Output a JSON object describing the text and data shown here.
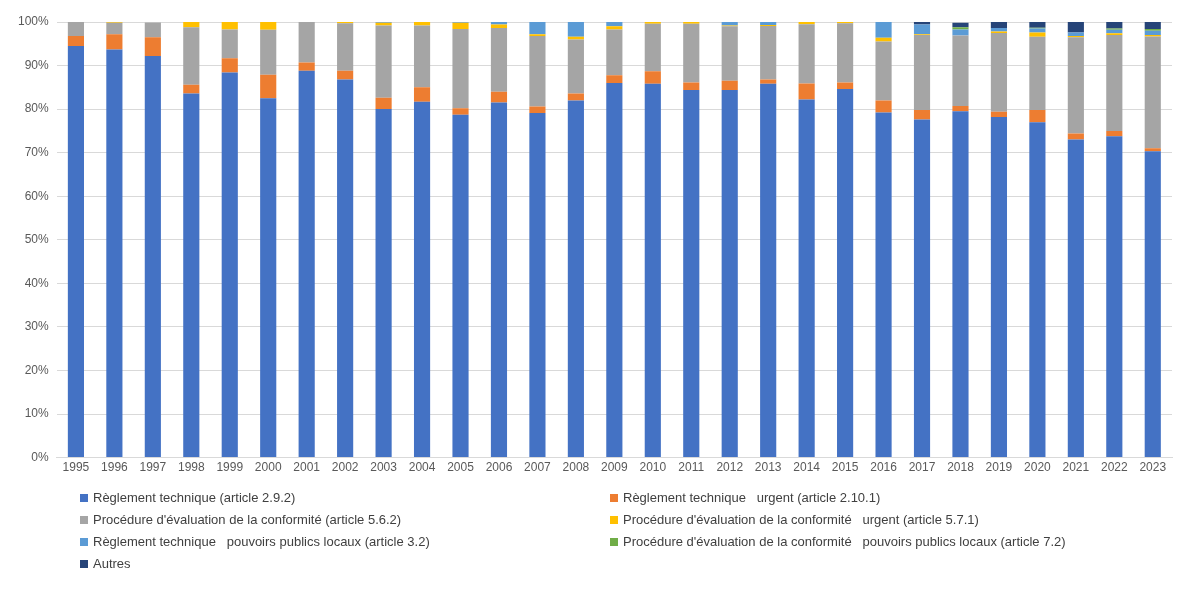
{
  "chart_data": {
    "type": "bar",
    "stacked": true,
    "legend": "bottom",
    "grid": "y",
    "categories": [
      "1995",
      "1996",
      "1997",
      "1998",
      "1999",
      "2000",
      "2001",
      "2002",
      "2003",
      "2004",
      "2005",
      "2006",
      "2007",
      "2008",
      "2009",
      "2010",
      "2011",
      "2012",
      "2013",
      "2014",
      "2015",
      "2016",
      "2017",
      "2018",
      "2019",
      "2020",
      "2021",
      "2022",
      "2023"
    ],
    "ylim": [
      0,
      100
    ],
    "yticks": [
      {
        "value": 0,
        "label": "0%"
      },
      {
        "value": 10,
        "label": "10%"
      },
      {
        "value": 20,
        "label": "20%"
      },
      {
        "value": 30,
        "label": "30%"
      },
      {
        "value": 40,
        "label": "40%"
      },
      {
        "value": 50,
        "label": "50%"
      },
      {
        "value": 60,
        "label": "60%"
      },
      {
        "value": 70,
        "label": "70%"
      },
      {
        "value": 80,
        "label": "80%"
      },
      {
        "value": 90,
        "label": "90%"
      },
      {
        "value": 100,
        "label": "100%"
      }
    ],
    "series": [
      {
        "name": "Règlement technique (article 2.9.2)",
        "color": "#4472c4",
        "values": [
          94.5,
          93.7,
          92.2,
          83.6,
          88.4,
          82.5,
          88.8,
          86.8,
          80.0,
          81.7,
          78.7,
          81.5,
          79.1,
          82.0,
          86.0,
          85.8,
          84.4,
          84.4,
          85.8,
          82.2,
          84.6,
          79.2,
          77.6,
          79.5,
          78.2,
          77.0,
          73.0,
          73.8,
          70.3
        ]
      },
      {
        "name": "Règlement technique   urgent (article 2.10.1)",
        "color": "#ed7d31",
        "values": [
          2.3,
          3.5,
          4.3,
          2.0,
          3.3,
          5.4,
          1.9,
          2.0,
          2.6,
          3.3,
          1.5,
          2.5,
          1.5,
          1.6,
          1.8,
          2.9,
          1.7,
          2.1,
          1.0,
          3.7,
          1.5,
          2.8,
          2.2,
          1.2,
          1.2,
          2.8,
          1.4,
          1.2,
          0.7
        ]
      },
      {
        "name": "Procédure d'évaluation de la conformité (article 5.6.2)",
        "color": "#a5a5a5",
        "values": [
          3.2,
          2.6,
          3.4,
          13.2,
          6.6,
          10.3,
          9.3,
          10.9,
          16.6,
          14.2,
          18.2,
          14.6,
          16.2,
          12.4,
          10.5,
          10.9,
          13.5,
          12.5,
          12.3,
          13.6,
          13.6,
          13.5,
          17.2,
          16.2,
          18.1,
          16.8,
          22.1,
          22.0,
          25.7
        ]
      },
      {
        "name": "Procédure d'évaluation de la conformité   urgent (article 5.7.1)",
        "color": "#ffc000",
        "values": [
          0,
          0.2,
          null,
          1.2,
          1.7,
          1.8,
          0,
          0.3,
          0.6,
          0.8,
          1.4,
          0.8,
          0.4,
          0.6,
          0.7,
          0.4,
          0.4,
          0.2,
          0.2,
          0.5,
          0.3,
          0.9,
          0.2,
          null,
          0.3,
          1.0,
          0.3,
          0.4,
          0.3
        ]
      },
      {
        "name": "Règlement technique   pouvoirs publics locaux (article 3.2)",
        "color": "#5b9bd5",
        "values": [
          0,
          0,
          0,
          0,
          0,
          0,
          0,
          0,
          0.2,
          0,
          0.2,
          0.6,
          2.8,
          3.4,
          1.0,
          0,
          0,
          0.8,
          0.7,
          0,
          0,
          3.6,
          2.2,
          1.4,
          0.8,
          0.9,
          0.8,
          0.8,
          1.0
        ]
      },
      {
        "name": "Procédure d'évaluation de la conformité   pouvoirs publics locaux (article 7.2)",
        "color": "#70ad47",
        "values": [
          0,
          0,
          0,
          0,
          0,
          0,
          0,
          0,
          0,
          0,
          0,
          0,
          0,
          0,
          0,
          0,
          0,
          0,
          0,
          0,
          0,
          0,
          0,
          0.5,
          0,
          0.2,
          0,
          0.3,
          0.4
        ]
      },
      {
        "name": "Autres",
        "color": "#264478",
        "values": [
          0,
          0,
          0,
          0,
          0,
          0,
          0,
          0,
          0,
          0,
          0,
          0,
          0,
          0,
          0,
          0,
          0,
          0,
          0,
          0,
          0,
          0,
          0.6,
          1.0,
          1.4,
          1.3,
          2.4,
          1.5,
          1.6
        ]
      }
    ]
  }
}
